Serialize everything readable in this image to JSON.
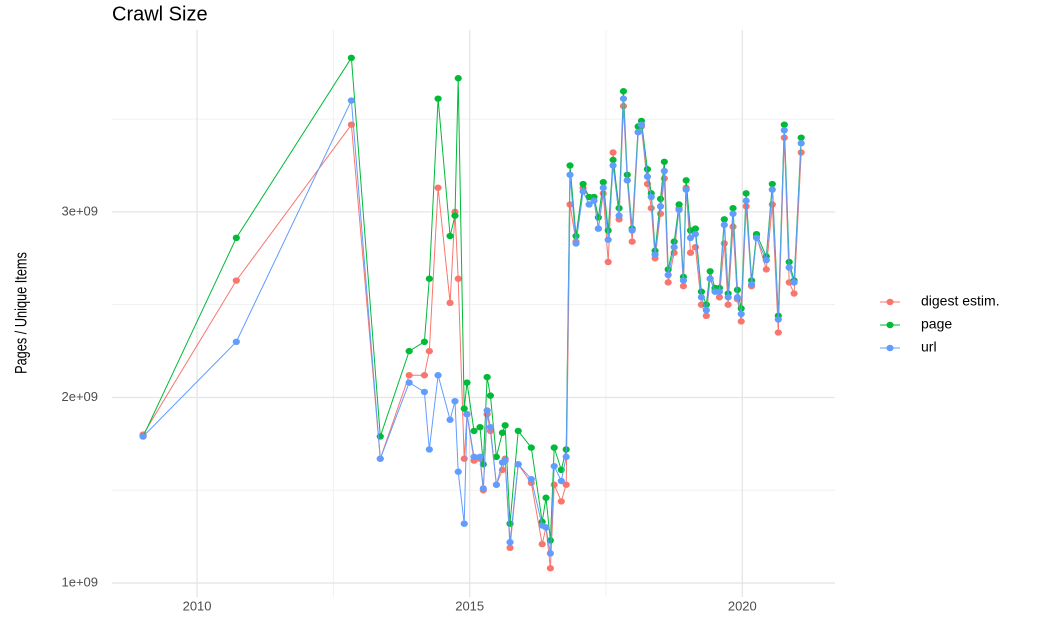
{
  "chart_data": {
    "type": "line",
    "title": "Crawl Size",
    "y_label": "Pages / Unique Items",
    "x": [
      2009.01,
      2010.72,
      2012.83,
      2013.36,
      2013.89,
      2014.17,
      2014.26,
      2014.42,
      2014.64,
      2014.73,
      2014.79,
      2014.9,
      2014.95,
      2015.08,
      2015.19,
      2015.25,
      2015.32,
      2015.38,
      2015.49,
      2015.6,
      2015.65,
      2015.74,
      2015.89,
      2016.13,
      2016.33,
      2016.4,
      2016.48,
      2016.55,
      2016.68,
      2016.77,
      2016.84,
      2016.95,
      2017.08,
      2017.19,
      2017.28,
      2017.36,
      2017.45,
      2017.54,
      2017.63,
      2017.74,
      2017.82,
      2017.89,
      2017.98,
      2018.09,
      2018.15,
      2018.26,
      2018.33,
      2018.4,
      2018.5,
      2018.57,
      2018.64,
      2018.75,
      2018.84,
      2018.92,
      2018.97,
      2019.05,
      2019.14,
      2019.25,
      2019.34,
      2019.41,
      2019.5,
      2019.58,
      2019.67,
      2019.74,
      2019.83,
      2019.91,
      2019.98,
      2020.07,
      2020.17,
      2020.26,
      2020.44,
      2020.55,
      2020.66,
      2020.77,
      2020.86,
      2020.95,
      2021.08
    ],
    "series": [
      {
        "name": "digest estim.",
        "color": "#F8766D",
        "values": [
          1800000000.0,
          2630000000.0,
          3470000000.0,
          1670000000.0,
          2120000000.0,
          2120000000.0,
          2250000000.0,
          3130000000.0,
          2510000000.0,
          3000000000.0,
          2640000000.0,
          1670000000.0,
          1910000000.0,
          1660000000.0,
          1670000000.0,
          1500000000.0,
          1910000000.0,
          1820000000.0,
          1530000000.0,
          1610000000.0,
          1670000000.0,
          1190000000.0,
          1640000000.0,
          1540000000.0,
          1210000000.0,
          1300000000.0,
          1080000000.0,
          1530000000.0,
          1440000000.0,
          1530000000.0,
          3040000000.0,
          2840000000.0,
          3130000000.0,
          3080000000.0,
          3080000000.0,
          2910000000.0,
          3100000000.0,
          2730000000.0,
          3320000000.0,
          2960000000.0,
          3570000000.0,
          3170000000.0,
          2840000000.0,
          3430000000.0,
          3460000000.0,
          3150000000.0,
          3020000000.0,
          2750000000.0,
          2990000000.0,
          3180000000.0,
          2620000000.0,
          2780000000.0,
          3020000000.0,
          2600000000.0,
          3130000000.0,
          2780000000.0,
          2810000000.0,
          2500000000.0,
          2440000000.0,
          2640000000.0,
          2580000000.0,
          2540000000.0,
          2830000000.0,
          2500000000.0,
          2920000000.0,
          2530000000.0,
          2410000000.0,
          3030000000.0,
          2600000000.0,
          2870000000.0,
          2690000000.0,
          3040000000.0,
          2350000000.0,
          3400000000.0,
          2620000000.0,
          2560000000.0,
          3320000000.0
        ]
      },
      {
        "name": "page",
        "color": "#00BA38",
        "values": [
          1790000000.0,
          2860000000.0,
          3830000000.0,
          1790000000.0,
          2250000000.0,
          2300000000.0,
          2640000000.0,
          3610000000.0,
          2870000000.0,
          2980000000.0,
          3720000000.0,
          1940000000.0,
          2080000000.0,
          1820000000.0,
          1840000000.0,
          1640000000.0,
          2110000000.0,
          2010000000.0,
          1680000000.0,
          1810000000.0,
          1850000000.0,
          1320000000.0,
          1820000000.0,
          1730000000.0,
          1330000000.0,
          1460000000.0,
          1230000000.0,
          1730000000.0,
          1610000000.0,
          1720000000.0,
          3250000000.0,
          2870000000.0,
          3150000000.0,
          3080000000.0,
          3080000000.0,
          2970000000.0,
          3160000000.0,
          2900000000.0,
          3280000000.0,
          3020000000.0,
          3650000000.0,
          3200000000.0,
          2910000000.0,
          3460000000.0,
          3490000000.0,
          3230000000.0,
          3100000000.0,
          2790000000.0,
          3070000000.0,
          3270000000.0,
          2690000000.0,
          2840000000.0,
          3040000000.0,
          2650000000.0,
          3170000000.0,
          2900000000.0,
          2910000000.0,
          2570000000.0,
          2500000000.0,
          2680000000.0,
          2590000000.0,
          2590000000.0,
          2960000000.0,
          2560000000.0,
          3020000000.0,
          2580000000.0,
          2480000000.0,
          3100000000.0,
          2630000000.0,
          2880000000.0,
          2760000000.0,
          3150000000.0,
          2440000000.0,
          3470000000.0,
          2730000000.0,
          2630000000.0,
          3400000000.0
        ]
      },
      {
        "name": "url",
        "color": "#619CFF",
        "values": [
          1790000000.0,
          2300000000.0,
          3600000000.0,
          1670000000.0,
          2080000000.0,
          2030000000.0,
          1720000000.0,
          2120000000.0,
          1880000000.0,
          1980000000.0,
          1600000000.0,
          1320000000.0,
          1910000000.0,
          1680000000.0,
          1680000000.0,
          1510000000.0,
          1930000000.0,
          1840000000.0,
          1530000000.0,
          1650000000.0,
          1660000000.0,
          1220000000.0,
          1640000000.0,
          1560000000.0,
          1310000000.0,
          1300000000.0,
          1160000000.0,
          1630000000.0,
          1550000000.0,
          1680000000.0,
          3200000000.0,
          2830000000.0,
          3110000000.0,
          3040000000.0,
          3060000000.0,
          2910000000.0,
          3130000000.0,
          2850000000.0,
          3250000000.0,
          2980000000.0,
          3610000000.0,
          3170000000.0,
          2900000000.0,
          3430000000.0,
          3470000000.0,
          3190000000.0,
          3080000000.0,
          2770000000.0,
          3030000000.0,
          3220000000.0,
          2660000000.0,
          2810000000.0,
          3010000000.0,
          2630000000.0,
          3120000000.0,
          2860000000.0,
          2880000000.0,
          2540000000.0,
          2470000000.0,
          2640000000.0,
          2570000000.0,
          2570000000.0,
          2930000000.0,
          2540000000.0,
          2990000000.0,
          2540000000.0,
          2450000000.0,
          3060000000.0,
          2610000000.0,
          2860000000.0,
          2740000000.0,
          3120000000.0,
          2420000000.0,
          3440000000.0,
          2700000000.0,
          2620000000.0,
          3370000000.0
        ]
      }
    ],
    "xlim": [
      2008.44,
      2021.7
    ],
    "xticks": [
      2010,
      2015,
      2020
    ],
    "x_minor_ticks": [
      2012.5,
      2017.5
    ],
    "ylim": [
      925000000.0,
      3980000000.0
    ],
    "yticks": [
      {
        "value": 1000000000.0,
        "label": "1e+09"
      },
      {
        "value": 2000000000.0,
        "label": "2e+09"
      },
      {
        "value": 3000000000.0,
        "label": "3e+09"
      }
    ],
    "y_minor_ticks": [
      1500000000.0,
      2500000000.0,
      3500000000.0
    ],
    "grid": true,
    "legend": "right"
  }
}
